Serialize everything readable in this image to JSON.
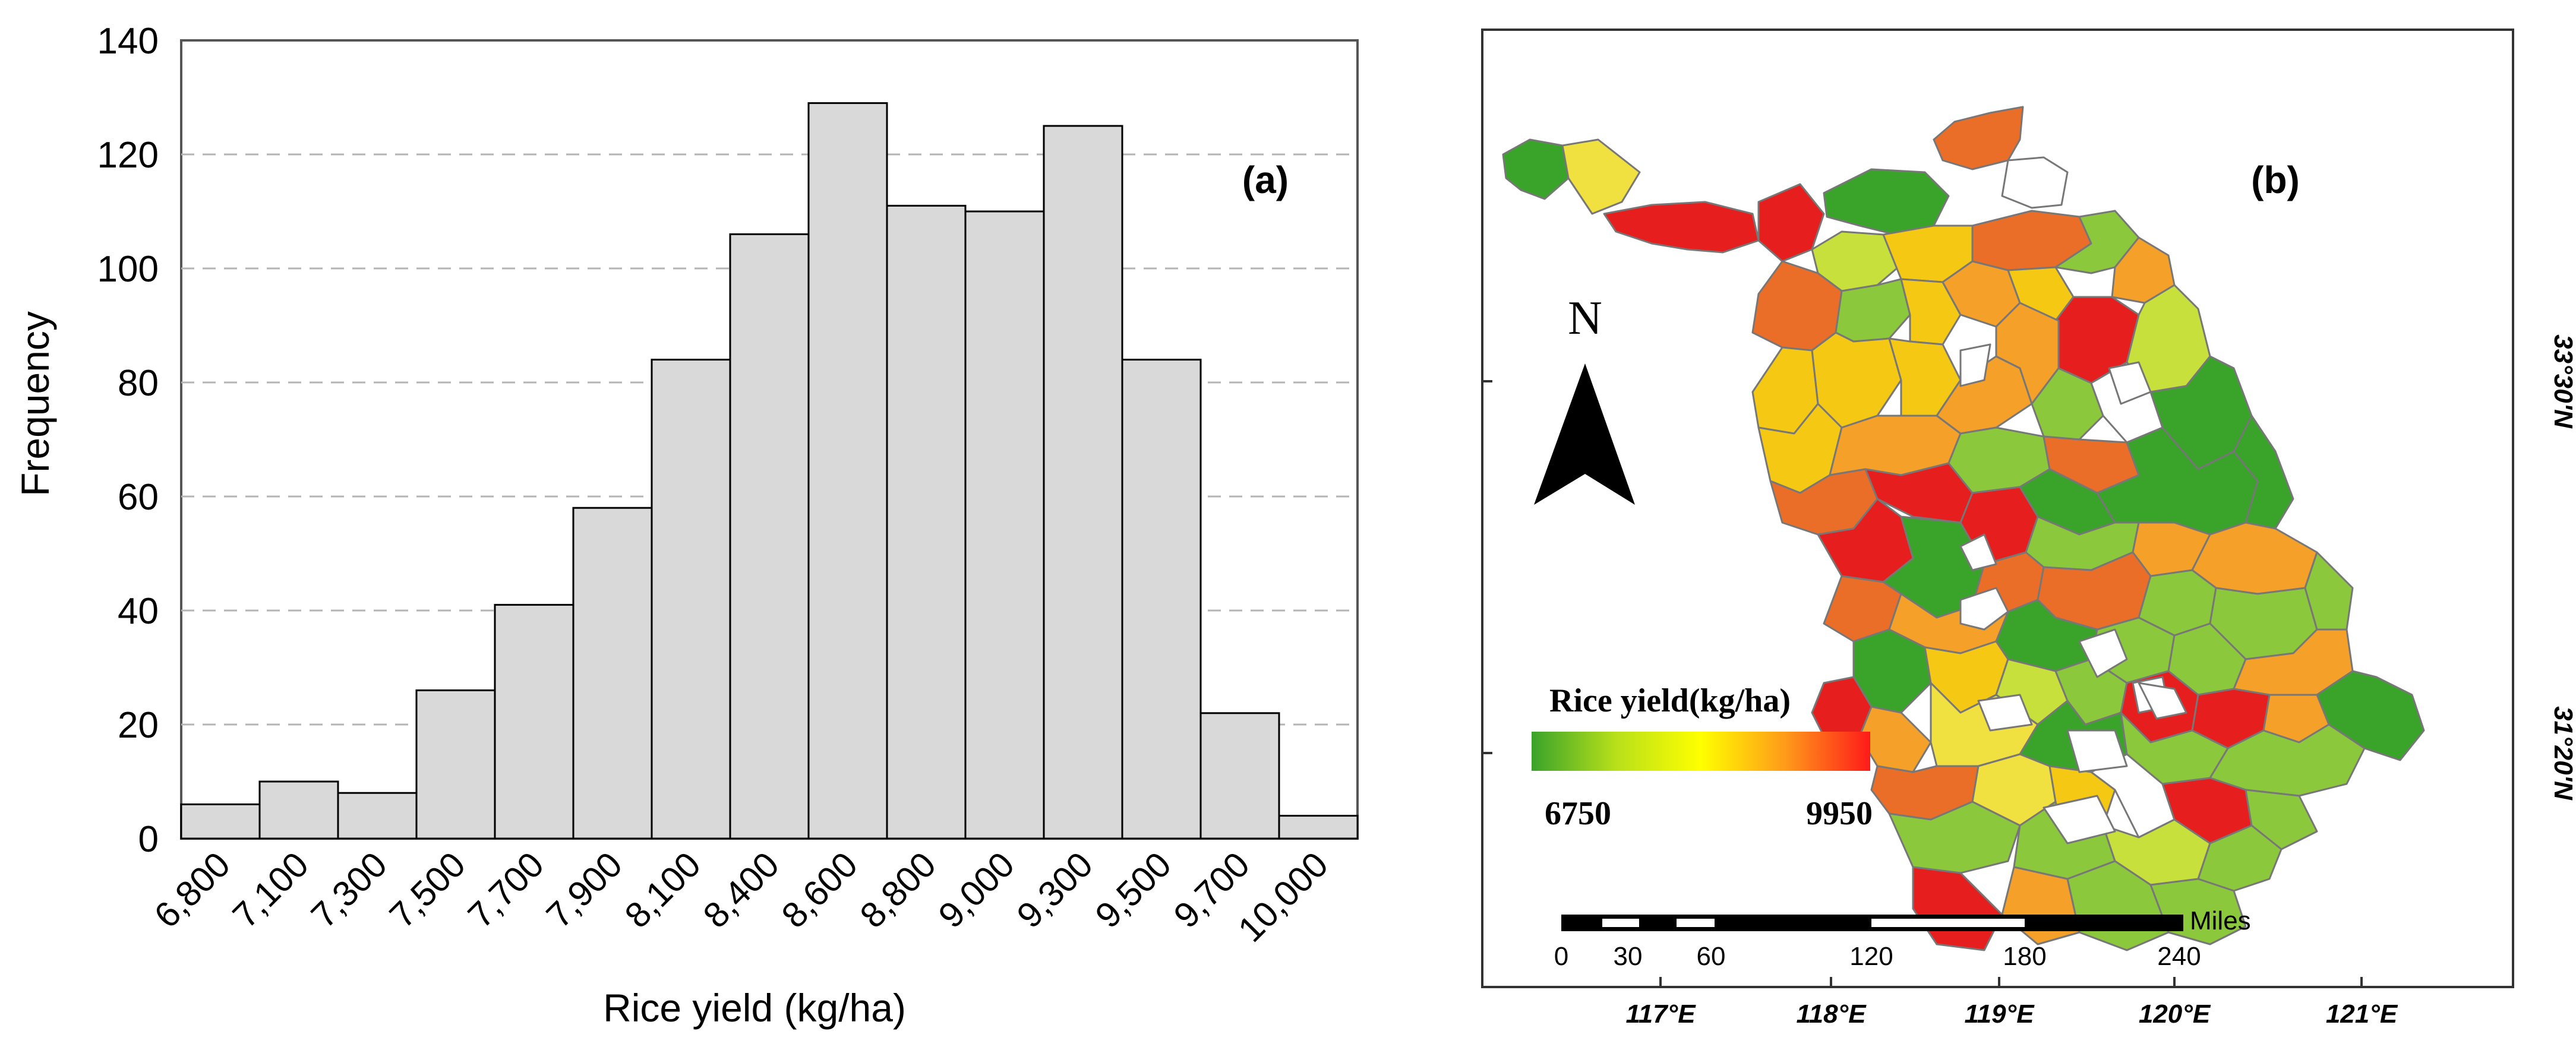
{
  "chart_data": [
    {
      "type": "bar",
      "panel_label": "(a)",
      "title": "",
      "xlabel": "Rice yield (kg/ha)",
      "ylabel": "Frequency",
      "ylim": [
        0,
        140
      ],
      "yticks": [
        0,
        20,
        40,
        60,
        80,
        100,
        120,
        140
      ],
      "grid": true,
      "categories": [
        "6,800",
        "7,100",
        "7,300",
        "7,500",
        "7,700",
        "7,900",
        "8,100",
        "8,400",
        "8,600",
        "8,800",
        "9,000",
        "9,300",
        "9,500",
        "9,700",
        "10,000"
      ],
      "values": [
        6,
        10,
        8,
        26,
        41,
        58,
        84,
        106,
        129,
        111,
        110,
        125,
        84,
        22,
        4
      ]
    },
    {
      "type": "map",
      "panel_label": "(b)",
      "north_label": "N",
      "legend": {
        "title": "Rice yield(kg/ha)",
        "min_label": "6750",
        "max_label": "9950",
        "colors": [
          "#3aa32a",
          "#b8e01a",
          "#ffff00",
          "#ff9a1a",
          "#ff1a1a"
        ]
      },
      "scale_bar": {
        "unit": "Miles",
        "labels": [
          "0",
          "30",
          "60",
          "120",
          "180",
          "240"
        ]
      },
      "x_ticks": [
        "117°E",
        "118°E",
        "119°E",
        "120°E",
        "121°E"
      ],
      "y_ticks": [
        "33°30'N",
        "31°20'N"
      ],
      "palette": {
        "green": "#3aa32a",
        "light_green": "#8cc83c",
        "yellow_green": "#c8e03c",
        "yellow": "#f0e040",
        "gold": "#f5c814",
        "orange": "#f5a028",
        "dark_orange": "#eb6e28",
        "red": "#e61e1e",
        "white": "#ffffff"
      }
    }
  ]
}
